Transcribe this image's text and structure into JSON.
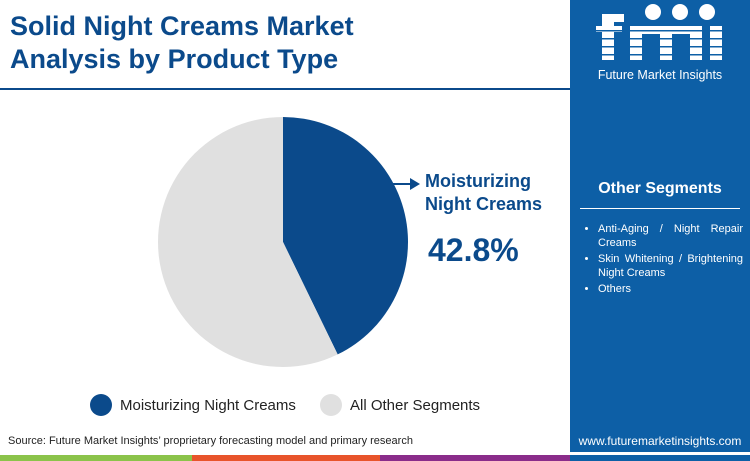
{
  "header": {
    "title": "Solid Night Creams Market Analysis by Product Type"
  },
  "brand": {
    "logo_text": "Future Market Insights",
    "url": "www.futuremarketinsights.com"
  },
  "sidebar": {
    "title": "Other Segments",
    "items": [
      "Anti-Aging / Night Repair Creams",
      "Skin Whitening / Brightening Night Creams",
      "Others"
    ]
  },
  "footer": {
    "source": "Source: Future Market Insights’ proprietary forecasting model and primary research"
  },
  "colors": {
    "primary": "#0b4a8b",
    "other": "#e0e0e0",
    "sidebar": "#0d5fa6"
  },
  "chart_data": {
    "type": "pie",
    "slices": [
      {
        "name": "Moisturizing Night Creams",
        "value": 42.8,
        "color": "#0b4a8b"
      },
      {
        "name": "All Other Segments",
        "value": 57.2,
        "color": "#e0e0e0"
      }
    ],
    "callout": {
      "label": "Moisturizing Night Creams",
      "value_label": "42.8%"
    },
    "legend": [
      "Moisturizing Night Creams",
      "All Other Segments"
    ],
    "legend_placement": "bottom"
  }
}
